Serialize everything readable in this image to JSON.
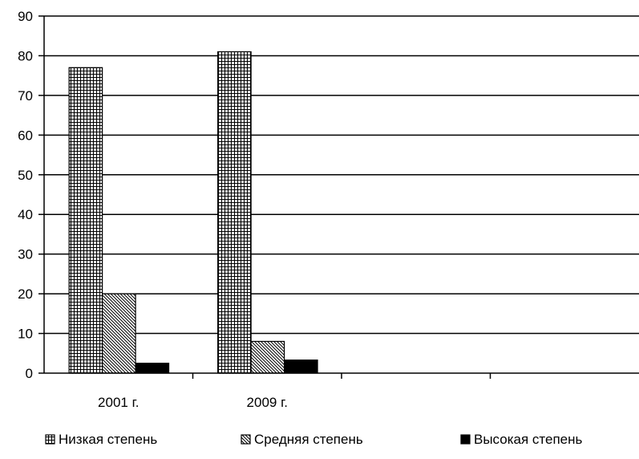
{
  "chart_data": {
    "type": "bar",
    "title": "",
    "xlabel": "",
    "ylabel": "",
    "categories": [
      "2001 г.",
      "2009 г.",
      "",
      ""
    ],
    "series": [
      {
        "name": "Низкая степень",
        "values": [
          77,
          81,
          null,
          null
        ],
        "pattern": "grid"
      },
      {
        "name": "Средняя степень",
        "values": [
          20,
          8,
          null,
          null
        ],
        "pattern": "diagonal"
      },
      {
        "name": "Высокая степень",
        "values": [
          2.5,
          3.3,
          null,
          null
        ],
        "pattern": "solid"
      }
    ],
    "ylim": [
      0,
      90
    ],
    "yticks": [
      0,
      10,
      20,
      30,
      40,
      50,
      60,
      70,
      80,
      90
    ],
    "grid": true,
    "legend_position": "bottom",
    "colors": {
      "bar_stroke": "#000000",
      "solid_fill": "#000000",
      "background": "#ffffff"
    }
  }
}
